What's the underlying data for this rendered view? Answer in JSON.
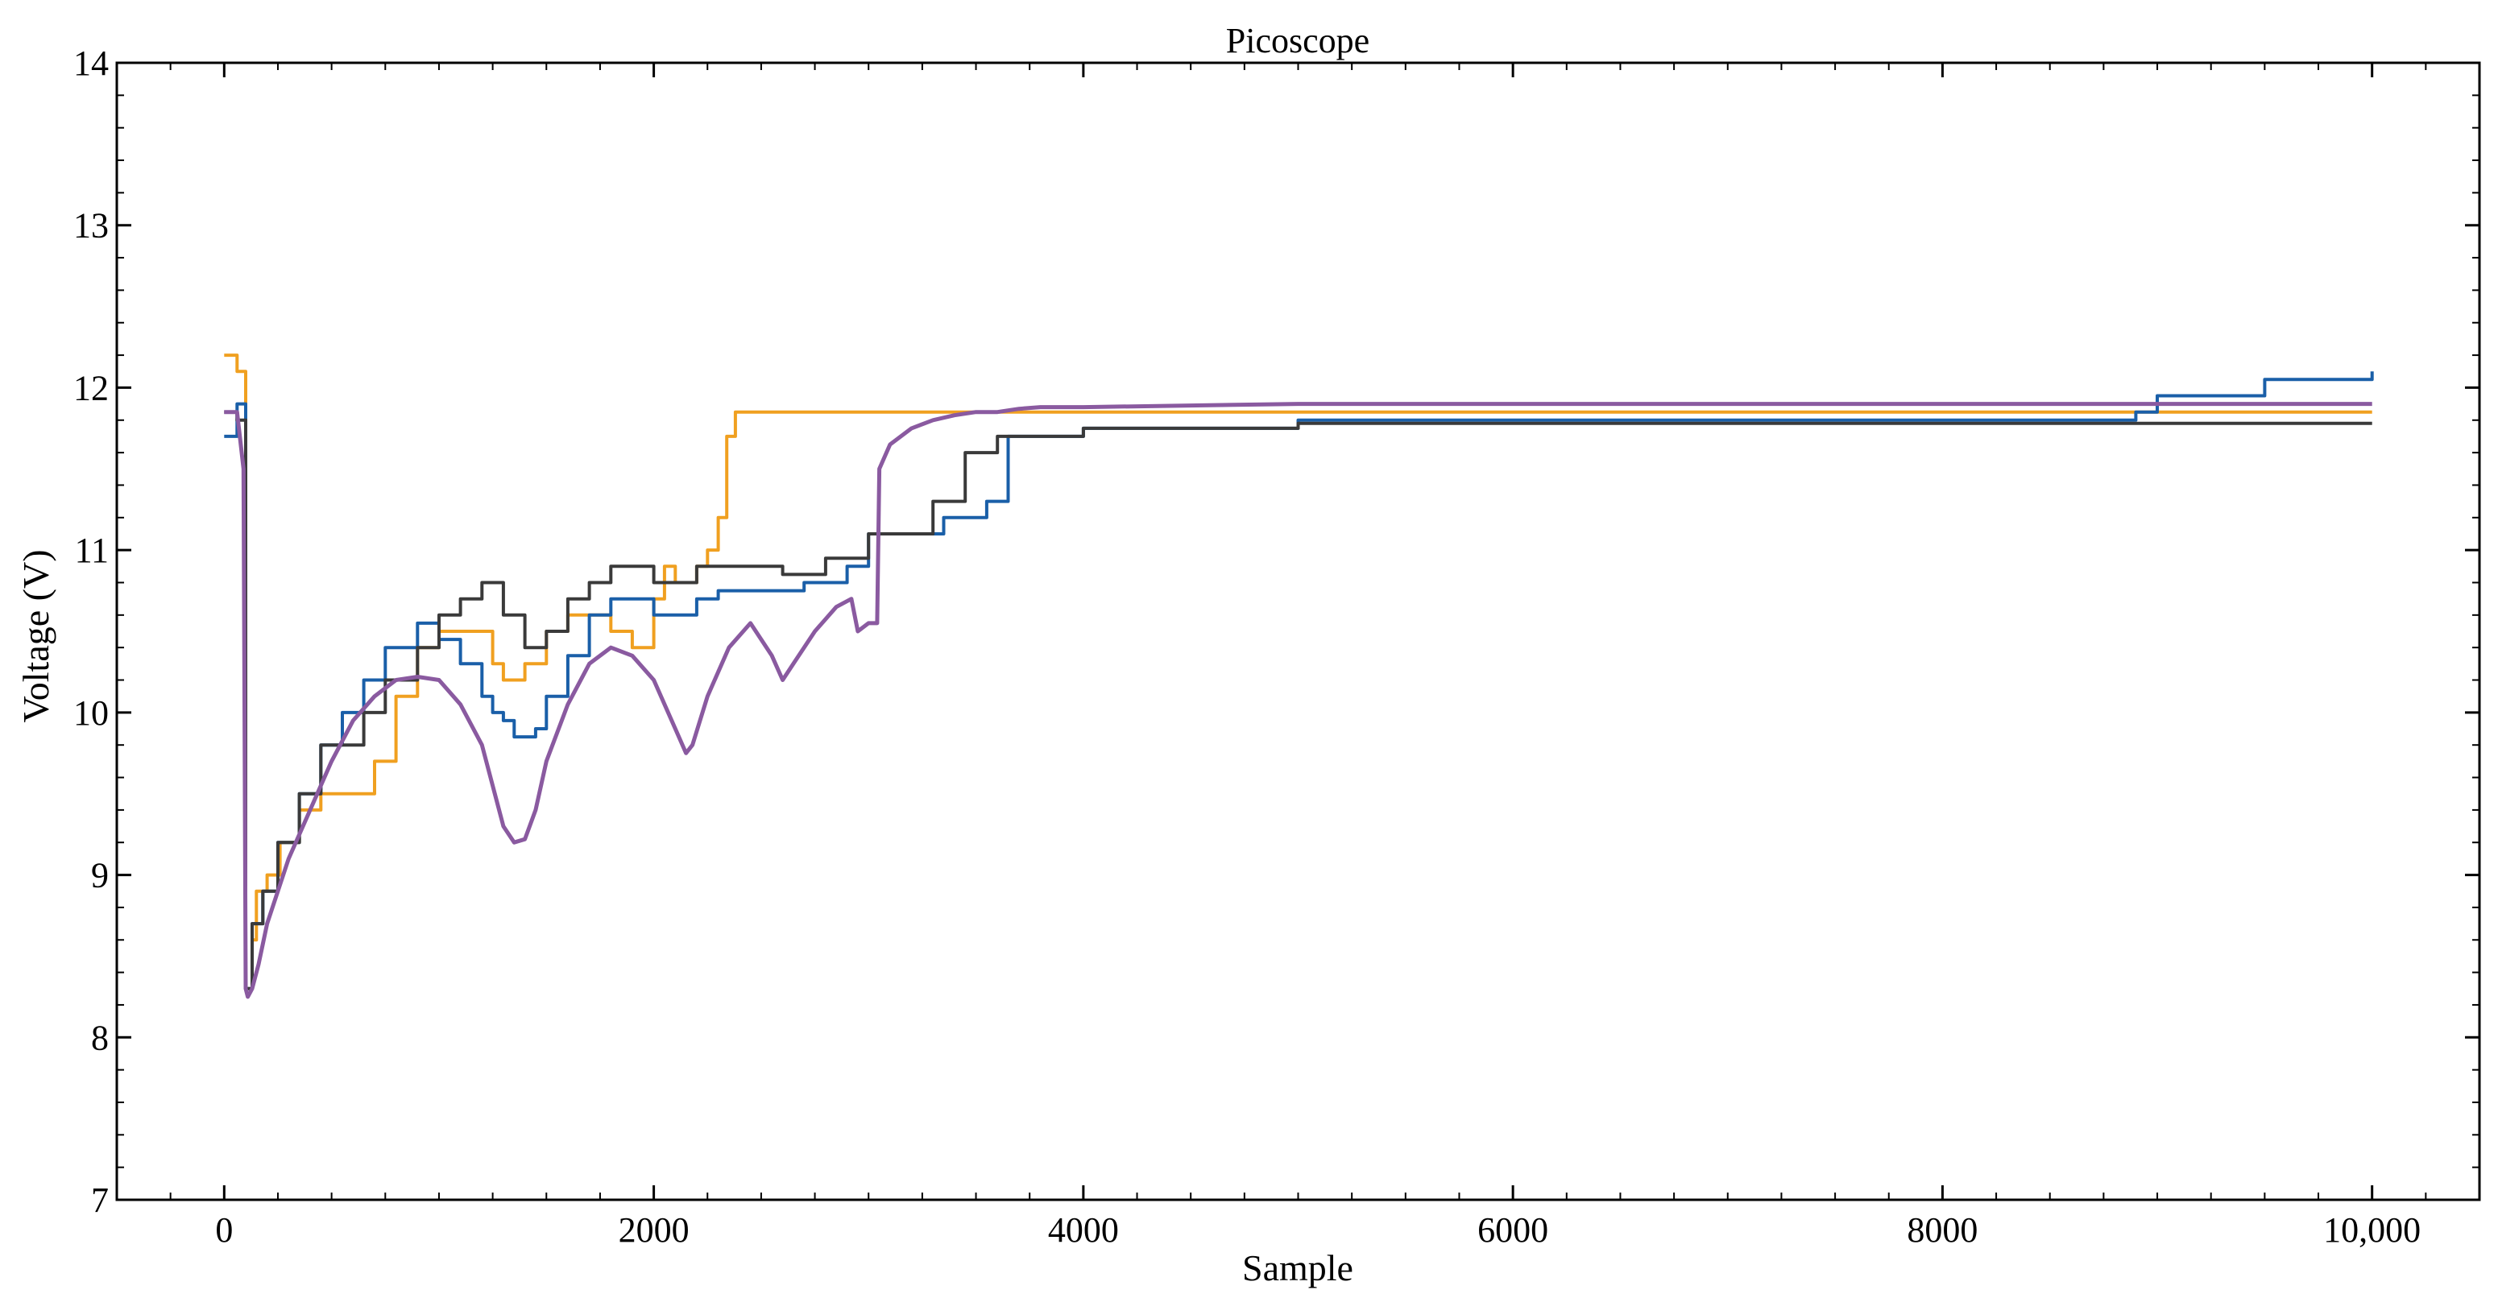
{
  "chart_data": {
    "type": "line",
    "title": "Picoscope",
    "xlabel": "Sample",
    "ylabel": "Voltage (V)",
    "xlim": [
      -500,
      10500
    ],
    "ylim": [
      7,
      14
    ],
    "xticks": [
      0,
      2000,
      4000,
      6000,
      8000,
      10000
    ],
    "xtick_labels": [
      "0",
      "2000",
      "4000",
      "6000",
      "8000",
      "10,000"
    ],
    "yticks": [
      7,
      8,
      9,
      10,
      11,
      12,
      13,
      14
    ],
    "ytick_labels": [
      "7",
      "8",
      "9",
      "10",
      "11",
      "12",
      "13",
      "14"
    ],
    "grid": false,
    "legend": "none",
    "series": [
      {
        "name": "orange",
        "color": "#f0a020",
        "kind": "steps",
        "x": [
          0,
          60,
          100,
          130,
          150,
          200,
          260,
          350,
          450,
          560,
          700,
          800,
          900,
          1000,
          1200,
          1250,
          1300,
          1400,
          1500,
          1600,
          1700,
          1800,
          1900,
          2000,
          2050,
          2100,
          2200,
          2250,
          2300,
          2340,
          2380,
          3000,
          4000,
          5000,
          6000,
          7000,
          8000,
          9000,
          10000
        ],
        "y": [
          12.2,
          12.1,
          8.3,
          8.6,
          8.9,
          9.0,
          9.2,
          9.4,
          9.5,
          9.5,
          9.7,
          10.1,
          10.4,
          10.5,
          10.5,
          10.3,
          10.2,
          10.3,
          10.5,
          10.6,
          10.6,
          10.5,
          10.4,
          10.7,
          10.9,
          10.8,
          10.9,
          11.0,
          11.2,
          11.7,
          11.85,
          11.85,
          11.85,
          11.85,
          11.85,
          11.85,
          11.85,
          11.85,
          11.85
        ]
      },
      {
        "name": "blue",
        "color": "#1a5fa8",
        "kind": "steps",
        "x": [
          0,
          60,
          100,
          130,
          180,
          250,
          350,
          450,
          550,
          650,
          750,
          900,
          1000,
          1100,
          1200,
          1250,
          1300,
          1350,
          1400,
          1450,
          1500,
          1600,
          1700,
          1800,
          2000,
          2200,
          2300,
          2500,
          2700,
          2900,
          3000,
          3200,
          3350,
          3550,
          3650,
          4000,
          5000,
          6000,
          7000,
          8000,
          8900,
          9000,
          9500,
          10000
        ],
        "y": [
          11.7,
          11.9,
          8.3,
          8.7,
          8.9,
          9.2,
          9.5,
          9.8,
          10.0,
          10.2,
          10.4,
          10.55,
          10.45,
          10.3,
          10.1,
          10.0,
          9.95,
          9.85,
          9.85,
          9.9,
          10.1,
          10.35,
          10.6,
          10.7,
          10.6,
          10.7,
          10.75,
          10.75,
          10.8,
          10.9,
          11.1,
          11.1,
          11.2,
          11.3,
          11.7,
          11.75,
          11.8,
          11.8,
          11.8,
          11.8,
          11.85,
          11.95,
          12.05,
          12.1
        ]
      },
      {
        "name": "dark gray",
        "color": "#3a3a3a",
        "kind": "steps",
        "x": [
          0,
          60,
          100,
          130,
          180,
          250,
          350,
          450,
          550,
          650,
          750,
          900,
          1000,
          1100,
          1200,
          1300,
          1400,
          1500,
          1600,
          1700,
          1800,
          2000,
          2200,
          2400,
          2600,
          2800,
          3000,
          3200,
          3300,
          3450,
          3600,
          4000,
          5000,
          6000,
          7000,
          8000,
          9000,
          10000
        ],
        "y": [
          11.85,
          11.8,
          8.3,
          8.7,
          8.9,
          9.2,
          9.5,
          9.8,
          9.8,
          10.0,
          10.2,
          10.4,
          10.6,
          10.7,
          10.8,
          10.6,
          10.4,
          10.5,
          10.7,
          10.8,
          10.9,
          10.8,
          10.9,
          10.9,
          10.85,
          10.95,
          11.1,
          11.1,
          11.3,
          11.6,
          11.7,
          11.75,
          11.78,
          11.78,
          11.78,
          11.78,
          11.78,
          11.78
        ]
      },
      {
        "name": "purple",
        "color": "#8a5aa0",
        "kind": "line",
        "x": [
          0,
          60,
          90,
          100,
          110,
          130,
          160,
          200,
          300,
          400,
          500,
          600,
          700,
          800,
          900,
          1000,
          1100,
          1200,
          1300,
          1350,
          1400,
          1450,
          1500,
          1600,
          1700,
          1800,
          1900,
          2000,
          2100,
          2150,
          2180,
          2250,
          2350,
          2450,
          2550,
          2600,
          2650,
          2750,
          2850,
          2920,
          2950,
          3000,
          3040,
          3050,
          3100,
          3200,
          3300,
          3400,
          3500,
          3600,
          3700,
          3800,
          4000,
          5000,
          6000,
          7000,
          8000,
          9000,
          10000
        ],
        "y": [
          11.85,
          11.85,
          11.5,
          8.3,
          8.25,
          8.3,
          8.45,
          8.7,
          9.1,
          9.4,
          9.7,
          9.95,
          10.1,
          10.2,
          10.22,
          10.2,
          10.05,
          9.8,
          9.3,
          9.2,
          9.22,
          9.4,
          9.7,
          10.05,
          10.3,
          10.4,
          10.35,
          10.2,
          9.9,
          9.75,
          9.8,
          10.1,
          10.4,
          10.55,
          10.35,
          10.2,
          10.3,
          10.5,
          10.65,
          10.7,
          10.5,
          10.55,
          10.55,
          11.5,
          11.65,
          11.75,
          11.8,
          11.83,
          11.85,
          11.85,
          11.87,
          11.88,
          11.88,
          11.9,
          11.9,
          11.9,
          11.9,
          11.9,
          11.9
        ]
      }
    ]
  }
}
